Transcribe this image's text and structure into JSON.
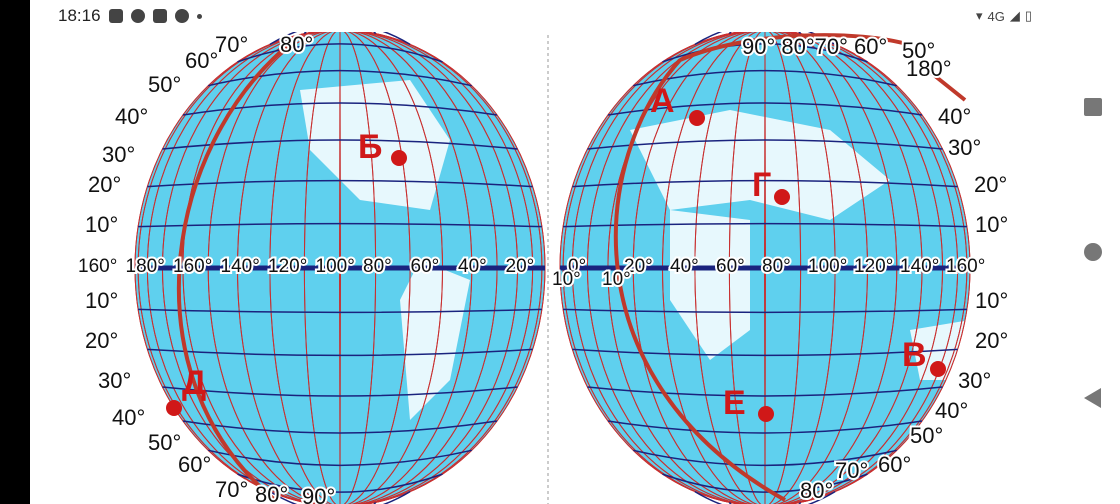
{
  "status_bar": {
    "time": "18:16",
    "network": "4G",
    "icons": [
      "notification-icon",
      "messenger-icon",
      "instagram-icon",
      "viber-icon",
      "dot-icon"
    ]
  },
  "map": {
    "equator_left": [
      "160°",
      "180°",
      "160°",
      "140°",
      "120°",
      "100°",
      "80°",
      "60°",
      "40°",
      "20°"
    ],
    "equator_right": [
      "0°",
      "20°",
      "40°",
      "60°",
      "80°",
      "100°",
      "120°",
      "140°",
      "160°"
    ],
    "equator_small": [
      "10°",
      "10°"
    ],
    "lat_left": [
      "70°",
      "60°",
      "50°",
      "40°",
      "30°",
      "20°",
      "10°",
      "10°",
      "20°",
      "30°",
      "40°",
      "50°",
      "60°",
      "70°",
      "80°",
      "90°"
    ],
    "lat_right": [
      "50°",
      "180°",
      "40°",
      "30°",
      "20°",
      "10°",
      "10°",
      "20°",
      "30°",
      "40°",
      "50°",
      "60°",
      "70°",
      "80°"
    ],
    "top_left": "80°",
    "top_right": "90° 80°70° 60°",
    "points": [
      {
        "label": "А"
      },
      {
        "label": "Б"
      },
      {
        "label": "Г"
      },
      {
        "label": "В"
      },
      {
        "label": "Д"
      },
      {
        "label": "Е"
      }
    ],
    "colors": {
      "ocean": "#5fd0ee",
      "land": "#ffffff",
      "meridian": "#c83030",
      "parallel": "#1a237e",
      "great_circle": "#c0392b",
      "point": "#d01818"
    }
  }
}
